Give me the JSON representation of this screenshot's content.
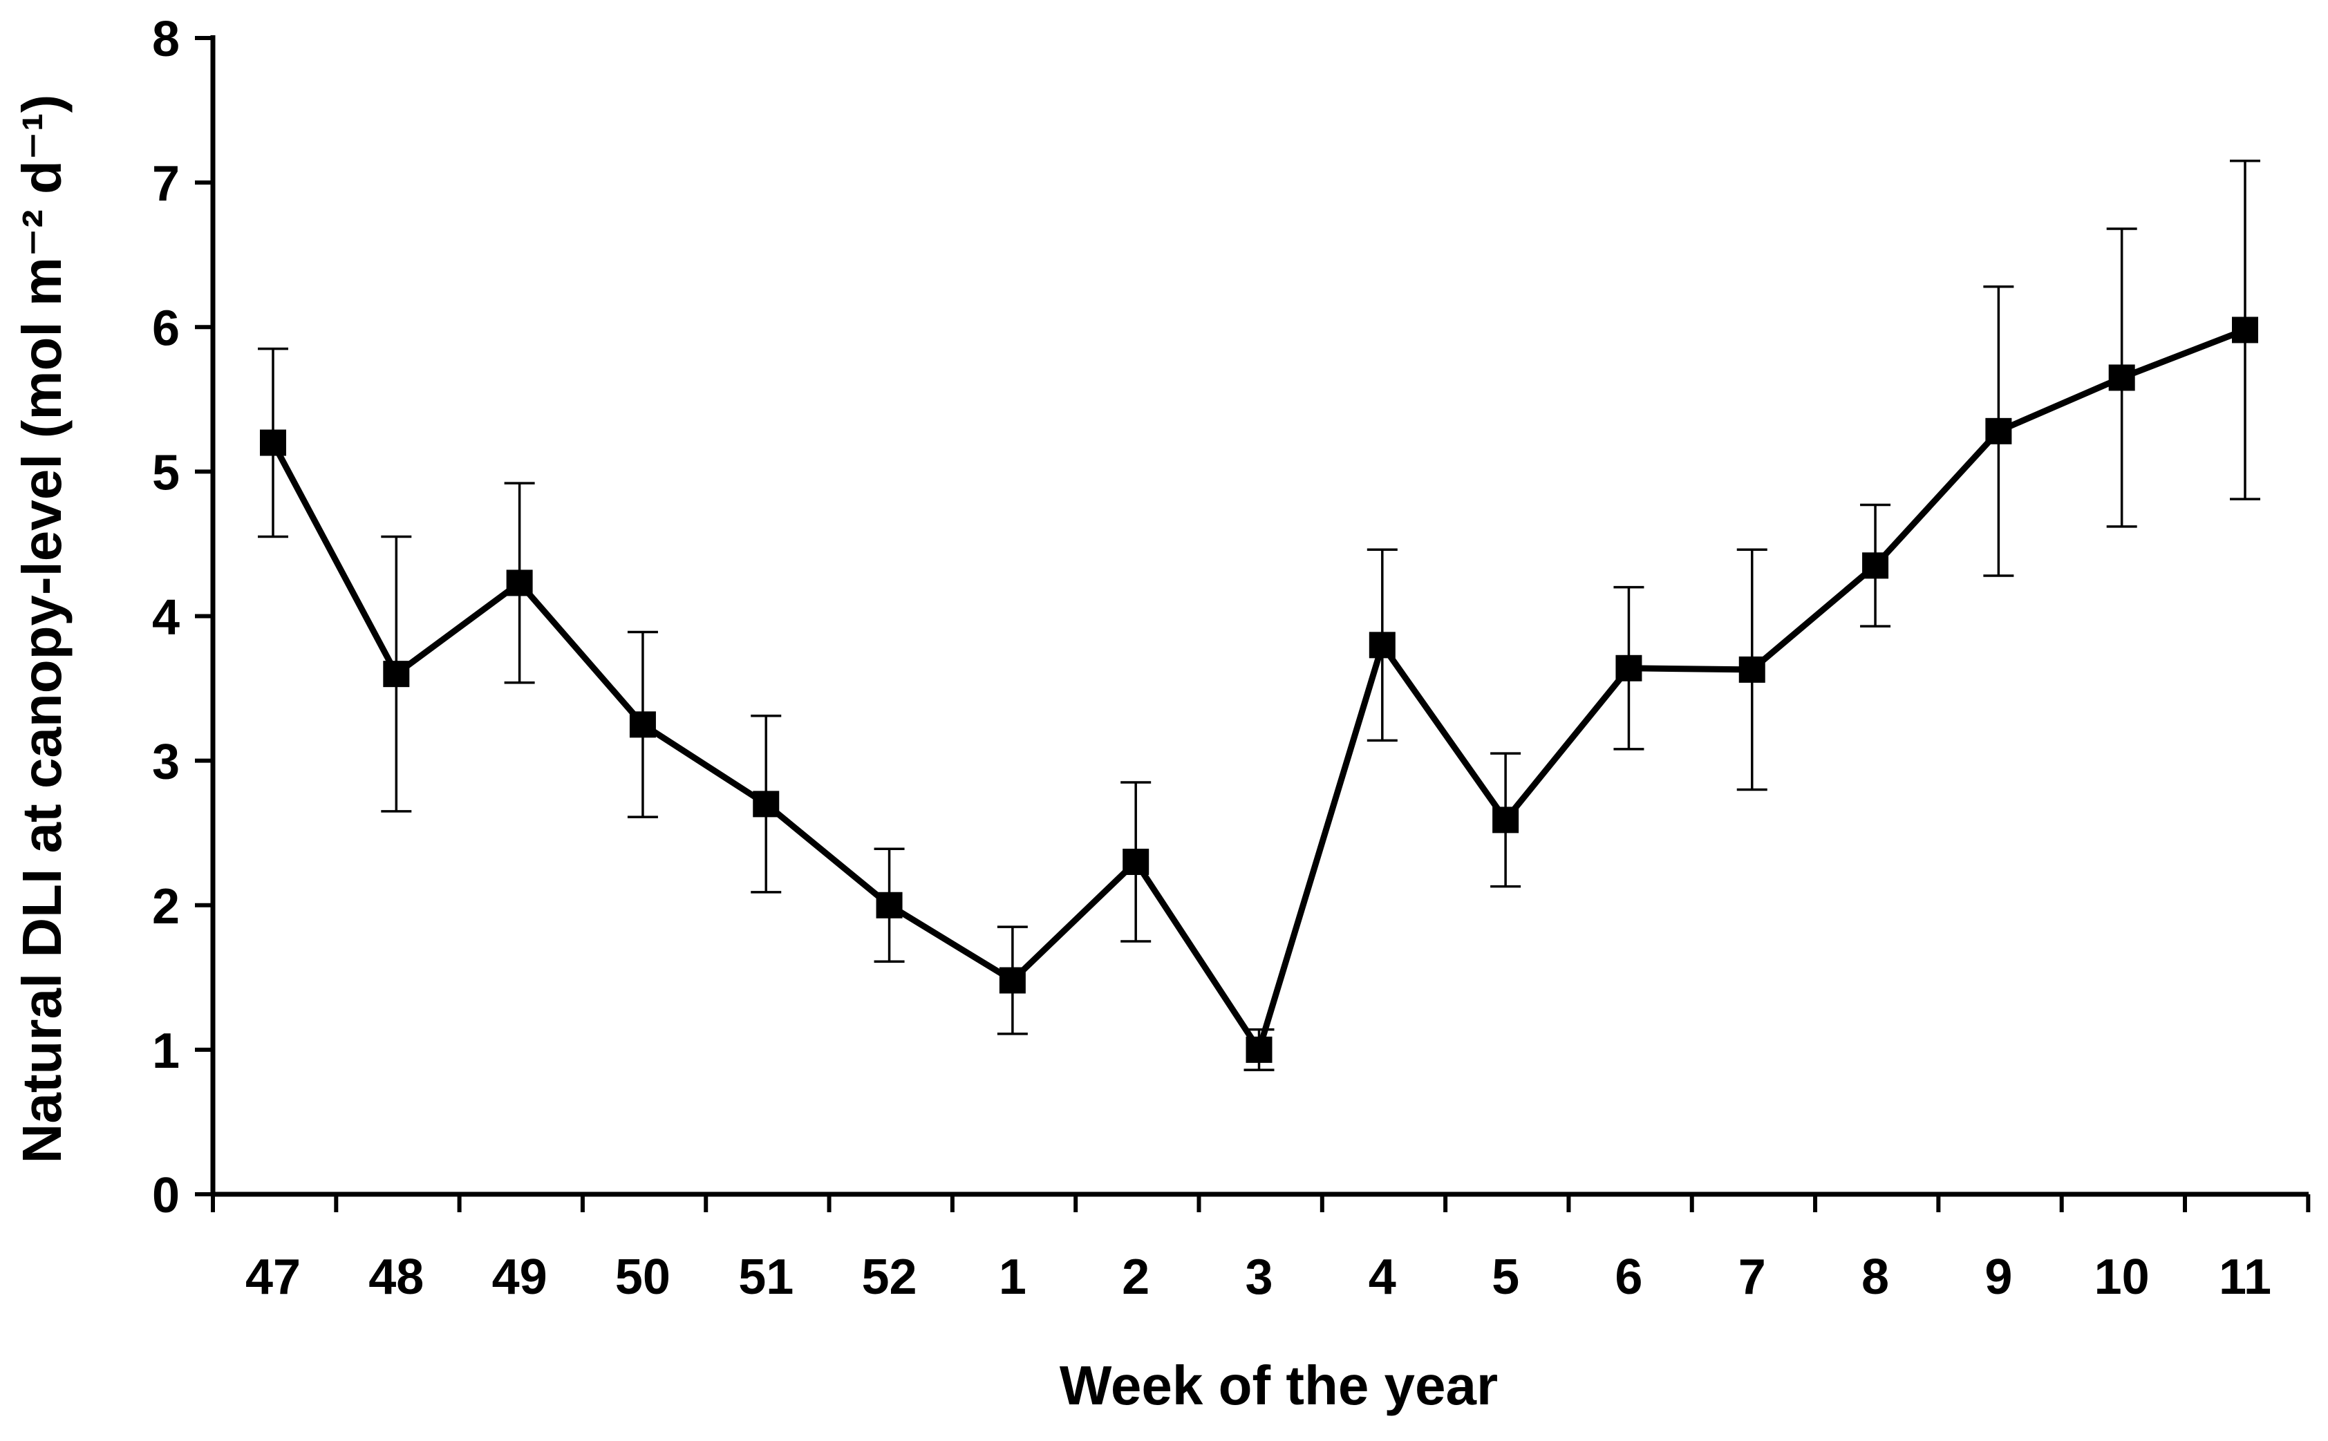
{
  "chart_data": {
    "type": "line",
    "title": "",
    "xlabel": "Week of the year",
    "ylabel": "Natural DLI at canopy-level (mol m⁻² d⁻¹)",
    "ylim": [
      0,
      8
    ],
    "yticks": [
      0,
      1,
      2,
      3,
      4,
      5,
      6,
      7,
      8
    ],
    "grid": false,
    "legend": "none",
    "categories": [
      "47",
      "48",
      "49",
      "50",
      "51",
      "52",
      "1",
      "2",
      "3",
      "4",
      "5",
      "6",
      "7",
      "8",
      "9",
      "10",
      "11"
    ],
    "series": [
      {
        "name": "Natural DLI",
        "marker": "square",
        "color": "#000000",
        "values": [
          5.2,
          3.6,
          4.23,
          3.25,
          2.7,
          2.0,
          1.48,
          2.3,
          1.0,
          3.8,
          2.59,
          3.64,
          3.63,
          4.35,
          5.28,
          5.65,
          5.98
        ],
        "error": [
          0.65,
          0.95,
          0.69,
          0.64,
          0.61,
          0.39,
          0.37,
          0.55,
          0.14,
          0.66,
          0.46,
          0.56,
          0.83,
          0.42,
          1.0,
          1.03,
          1.17
        ]
      }
    ]
  }
}
